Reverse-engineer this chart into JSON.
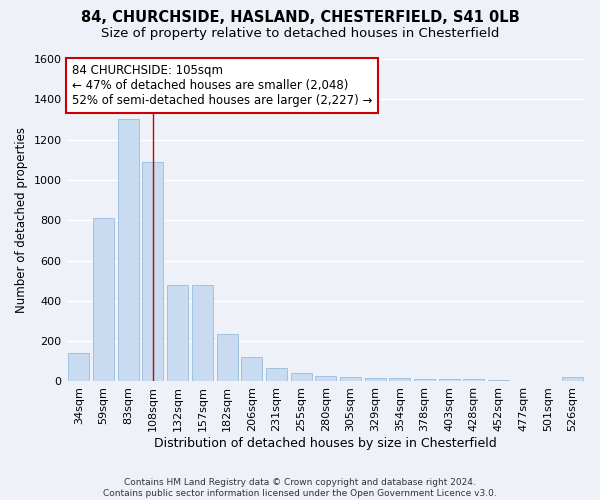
{
  "title1": "84, CHURCHSIDE, HASLAND, CHESTERFIELD, S41 0LB",
  "title2": "Size of property relative to detached houses in Chesterfield",
  "xlabel": "Distribution of detached houses by size in Chesterfield",
  "ylabel": "Number of detached properties",
  "footer": "Contains HM Land Registry data © Crown copyright and database right 2024.\nContains public sector information licensed under the Open Government Licence v3.0.",
  "categories": [
    "34sqm",
    "59sqm",
    "83sqm",
    "108sqm",
    "132sqm",
    "157sqm",
    "182sqm",
    "206sqm",
    "231sqm",
    "255sqm",
    "280sqm",
    "305sqm",
    "329sqm",
    "354sqm",
    "378sqm",
    "403sqm",
    "428sqm",
    "452sqm",
    "477sqm",
    "501sqm",
    "526sqm"
  ],
  "values": [
    140,
    810,
    1300,
    1090,
    480,
    480,
    235,
    120,
    65,
    40,
    25,
    20,
    18,
    15,
    12,
    12,
    10,
    5,
    4,
    3,
    20
  ],
  "bar_color": "#c9dbf0",
  "bar_edge_color": "#8ab4d8",
  "highlight_bar_index": 3,
  "highlight_line_color": "#cc0000",
  "annotation_line1": "84 CHURCHSIDE: 105sqm",
  "annotation_line2": "← 47% of detached houses are smaller (2,048)",
  "annotation_line3": "52% of semi-detached houses are larger (2,227) →",
  "annotation_box_color": "#ffffff",
  "annotation_box_edge": "#cc0000",
  "ylim": [
    0,
    1600
  ],
  "yticks": [
    0,
    200,
    400,
    600,
    800,
    1000,
    1200,
    1400,
    1600
  ],
  "bg_color": "#eef2f8",
  "grid_color": "#ffffff",
  "title_fontsize": 10.5,
  "subtitle_fontsize": 9.5,
  "xlabel_fontsize": 9,
  "ylabel_fontsize": 8.5,
  "tick_fontsize": 8,
  "annotation_fontsize": 8.5,
  "footer_fontsize": 6.5
}
